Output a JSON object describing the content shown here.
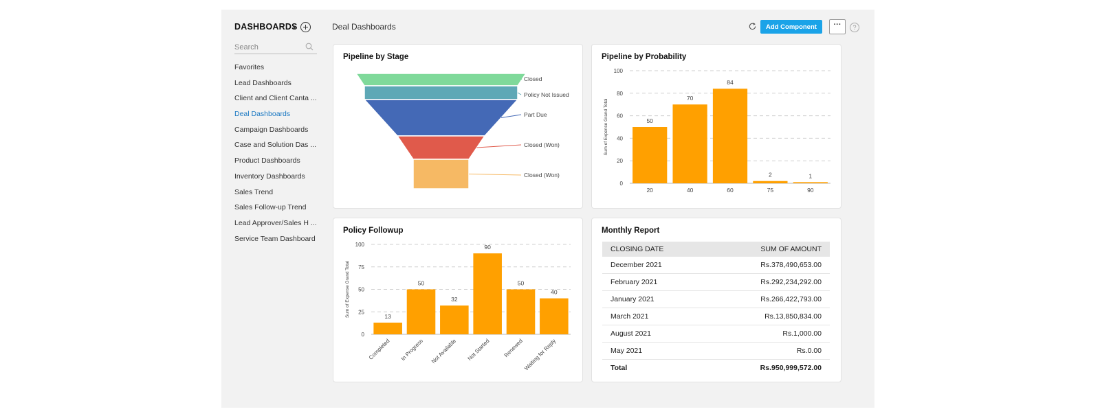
{
  "sidebar": {
    "title": "DASHBOARDS",
    "search_placeholder": "Search",
    "items": [
      {
        "label": "Favorites"
      },
      {
        "label": "Lead Dashboards"
      },
      {
        "label": "Client and Client Canta ..."
      },
      {
        "label": "Deal Dashboards",
        "active": true
      },
      {
        "label": "Campaign Dashboards"
      },
      {
        "label": "Case and Solution Das ..."
      },
      {
        "label": "Product Dashboards"
      },
      {
        "label": "Inventory Dashboards"
      },
      {
        "label": "Sales Trend"
      },
      {
        "label": "Sales Follow-up Trend"
      },
      {
        "label": "Lead Approver/Sales H ..."
      },
      {
        "label": "Service Team Dashboard"
      }
    ]
  },
  "header": {
    "page_title": "Deal Dashboards",
    "add_component_label": "Add Component",
    "more_label": "···",
    "help_label": "?"
  },
  "colors": {
    "accent": "#1aa3e8",
    "bar": "#ffa000",
    "active_nav": "#1a78c2"
  },
  "chart_data": [
    {
      "id": "pipeline-by-stage",
      "type": "funnel",
      "title": "Pipeline by Stage",
      "stages": [
        {
          "label": "Closed",
          "color": "#7fd99a"
        },
        {
          "label": "Policy Not Issued",
          "color": "#5ea8b6"
        },
        {
          "label": "Part Due",
          "color": "#4469b6"
        },
        {
          "label": "Closed (Won)",
          "color": "#e05a4b"
        },
        {
          "label": "Closed (Won)",
          "color": "#f6b964"
        }
      ]
    },
    {
      "id": "pipeline-by-probability",
      "type": "bar",
      "title": "Pipeline by Probability",
      "ylabel": "Sum of Expense Grand Total",
      "xlabel": "",
      "categories": [
        "20",
        "40",
        "60",
        "75",
        "90"
      ],
      "values": [
        50,
        70,
        84,
        2,
        1
      ],
      "ylim": [
        0,
        100
      ],
      "yticks": [
        0,
        20,
        40,
        60,
        80,
        100
      ],
      "grid": true
    },
    {
      "id": "policy-followup",
      "type": "bar",
      "title": "Policy Followup",
      "ylabel": "Sum of Expense Grand Total",
      "xlabel": "",
      "categories": [
        "Completed",
        "In Progress",
        "Not Available",
        "Not Started",
        "Renewed",
        "Waiting for Reply"
      ],
      "values": [
        13,
        50,
        32,
        90,
        50,
        40
      ],
      "ylim": [
        0,
        100
      ],
      "yticks": [
        0,
        25,
        50,
        75,
        100
      ],
      "grid": true
    },
    {
      "id": "monthly-report",
      "type": "table",
      "title": "Monthly Report",
      "columns": [
        "CLOSING DATE",
        "SUM OF AMOUNT"
      ],
      "rows": [
        [
          "December 2021",
          "Rs.378,490,653.00"
        ],
        [
          "February 2021",
          "Rs.292,234,292.00"
        ],
        [
          "January 2021",
          "Rs.266,422,793.00"
        ],
        [
          "March 2021",
          "Rs.13,850,834.00"
        ],
        [
          "August 2021",
          "Rs.1,000.00"
        ],
        [
          "May 2021",
          "Rs.0.00"
        ]
      ],
      "total": [
        "Total",
        "Rs.950,999,572.00"
      ]
    }
  ]
}
